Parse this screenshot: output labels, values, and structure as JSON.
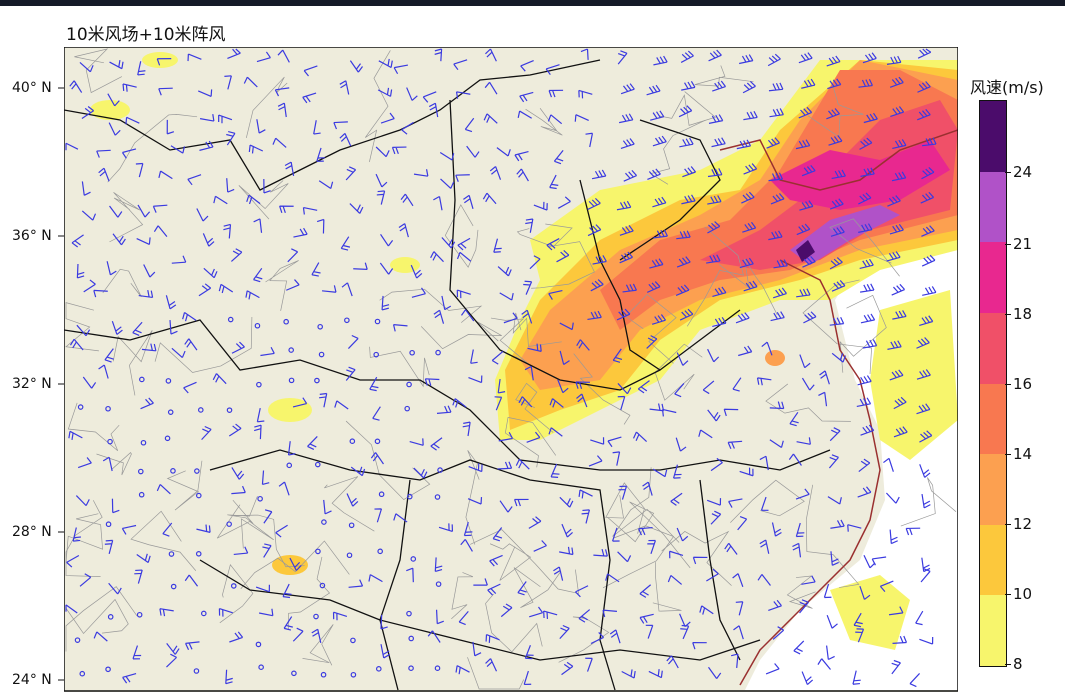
{
  "title": "10米风场+10米阵风",
  "latitude_labels": [
    "40° N",
    "36° N",
    "32° N",
    "28° N",
    "24° N"
  ],
  "colorbar": {
    "title": "风速(m/s)",
    "ticks": [
      "24",
      "21",
      "18",
      "16",
      "14",
      "12",
      "10",
      "8"
    ],
    "colors": [
      "#4b0c6b",
      "#b052c8",
      "#e8288f",
      "#f05068",
      "#f87850",
      "#fca050",
      "#fcc83c",
      "#f7f56c"
    ]
  },
  "colors": {
    "land": "#eeecdc",
    "sea": "#ffffff",
    "barb": "#3a3ae0",
    "coast": "#9a3030"
  }
}
